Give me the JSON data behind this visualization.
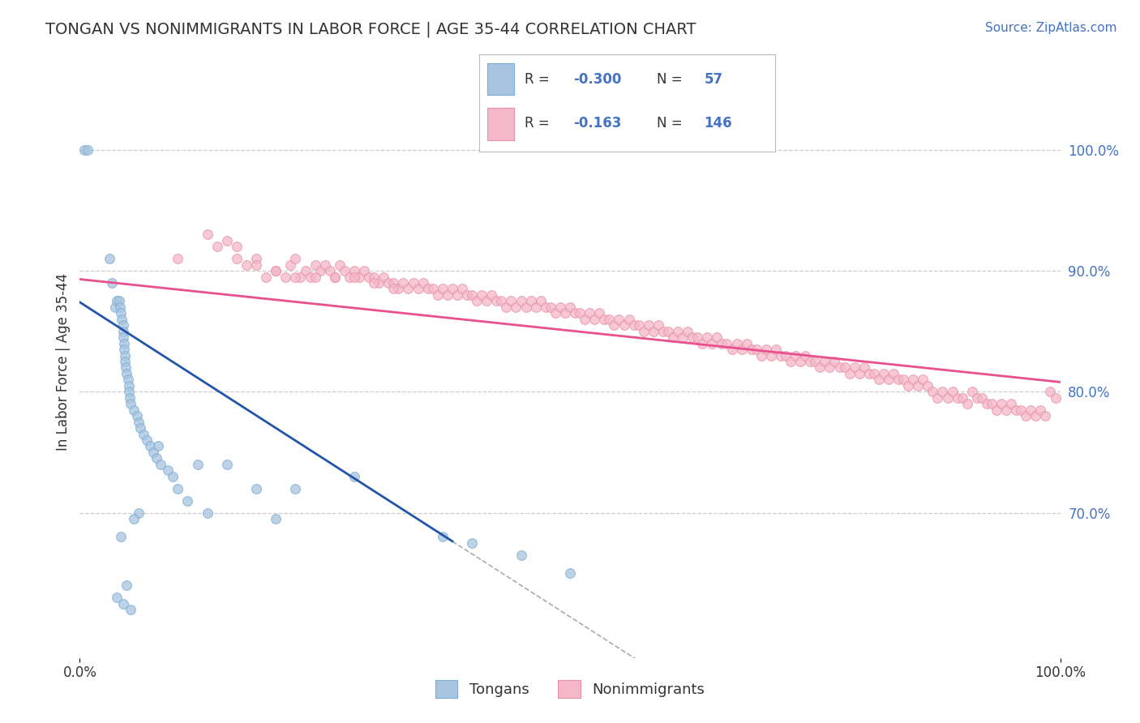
{
  "title": "TONGAN VS NONIMMIGRANTS IN LABOR FORCE | AGE 35-44 CORRELATION CHART",
  "source_text": "Source: ZipAtlas.com",
  "ylabel": "In Labor Force | Age 35-44",
  "xlim": [
    0.0,
    1.0
  ],
  "ylim": [
    0.58,
    1.07
  ],
  "yticklabels_right": [
    "100.0%",
    "90.0%",
    "80.0%",
    "70.0%"
  ],
  "yticklabels_right_vals": [
    1.0,
    0.9,
    0.8,
    0.7
  ],
  "grid_color": "#cccccc",
  "background_color": "#ffffff",
  "title_color": "#333333",
  "title_fontsize": 14,
  "source_color": "#4472c4",
  "source_fontsize": 11,
  "tongan_color": "#a8c4e0",
  "nonimmigrant_color": "#f4b8c8",
  "tongan_edge_color": "#7aadd4",
  "nonimmigrant_edge_color": "#e890aa",
  "marker_size": 72,
  "marker_alpha": 0.75,
  "legend_box_color_tongan": "#a8c4e0",
  "legend_box_color_nonimmigrant": "#f4b8c8",
  "legend_box_edge_tongan": "#7aadd4",
  "legend_box_edge_nonimmigrant": "#e890aa",
  "legend_R_color": "#4472c4",
  "legend_N_color": "#4472c4",
  "legend_fontsize": 13,
  "regression_tongan_color": "#2255aa",
  "regression_nonimmigrant_color": "#e85090",
  "regression_linewidth": 2.0,
  "dashed_extension_color": "#aaaaaa",
  "dashed_linewidth": 1.2,
  "legend_label_tongan": "Tongans",
  "legend_label_nonimmigrant": "Nonimmigrants",
  "tongan_x": [
    0.005,
    0.008,
    0.03,
    0.033,
    0.036,
    0.038,
    0.04,
    0.041,
    0.042,
    0.043,
    0.044,
    0.044,
    0.044,
    0.045,
    0.045,
    0.046,
    0.046,
    0.047,
    0.048,
    0.049,
    0.05,
    0.05,
    0.051,
    0.052,
    0.055,
    0.058,
    0.06,
    0.062,
    0.065,
    0.068,
    0.072,
    0.075,
    0.078,
    0.082,
    0.09,
    0.095,
    0.1,
    0.11,
    0.13,
    0.2,
    0.22,
    0.28,
    0.37,
    0.4,
    0.45,
    0.5,
    0.15,
    0.18,
    0.08,
    0.12,
    0.06,
    0.055,
    0.042,
    0.048,
    0.052,
    0.038,
    0.044
  ],
  "tongan_y": [
    1.0,
    1.0,
    0.91,
    0.89,
    0.87,
    0.875,
    0.875,
    0.87,
    0.865,
    0.86,
    0.855,
    0.85,
    0.845,
    0.84,
    0.835,
    0.83,
    0.825,
    0.82,
    0.815,
    0.81,
    0.805,
    0.8,
    0.795,
    0.79,
    0.785,
    0.78,
    0.775,
    0.77,
    0.765,
    0.76,
    0.755,
    0.75,
    0.745,
    0.74,
    0.735,
    0.73,
    0.72,
    0.71,
    0.7,
    0.695,
    0.72,
    0.73,
    0.68,
    0.675,
    0.665,
    0.65,
    0.74,
    0.72,
    0.755,
    0.74,
    0.7,
    0.695,
    0.68,
    0.64,
    0.62,
    0.63,
    0.625
  ],
  "nonimmigrant_x": [
    0.1,
    0.13,
    0.15,
    0.16,
    0.17,
    0.18,
    0.19,
    0.2,
    0.21,
    0.215,
    0.22,
    0.225,
    0.23,
    0.235,
    0.24,
    0.245,
    0.25,
    0.255,
    0.26,
    0.265,
    0.27,
    0.275,
    0.28,
    0.285,
    0.29,
    0.295,
    0.3,
    0.305,
    0.31,
    0.315,
    0.32,
    0.325,
    0.33,
    0.335,
    0.34,
    0.345,
    0.35,
    0.355,
    0.36,
    0.365,
    0.37,
    0.375,
    0.38,
    0.385,
    0.39,
    0.395,
    0.4,
    0.405,
    0.41,
    0.415,
    0.42,
    0.425,
    0.43,
    0.435,
    0.44,
    0.445,
    0.45,
    0.455,
    0.46,
    0.465,
    0.47,
    0.475,
    0.48,
    0.485,
    0.49,
    0.495,
    0.5,
    0.505,
    0.51,
    0.515,
    0.52,
    0.525,
    0.53,
    0.535,
    0.54,
    0.545,
    0.55,
    0.555,
    0.56,
    0.565,
    0.57,
    0.575,
    0.58,
    0.585,
    0.59,
    0.595,
    0.6,
    0.605,
    0.61,
    0.615,
    0.62,
    0.625,
    0.63,
    0.635,
    0.64,
    0.645,
    0.65,
    0.655,
    0.66,
    0.665,
    0.67,
    0.675,
    0.68,
    0.685,
    0.69,
    0.695,
    0.7,
    0.705,
    0.71,
    0.715,
    0.72,
    0.725,
    0.73,
    0.735,
    0.74,
    0.745,
    0.75,
    0.755,
    0.76,
    0.765,
    0.77,
    0.775,
    0.78,
    0.785,
    0.79,
    0.795,
    0.8,
    0.805,
    0.81,
    0.815,
    0.82,
    0.825,
    0.83,
    0.835,
    0.84,
    0.845,
    0.85,
    0.855,
    0.86,
    0.865,
    0.87,
    0.875,
    0.88,
    0.885,
    0.89,
    0.895,
    0.9,
    0.905,
    0.91,
    0.915,
    0.92,
    0.925,
    0.93,
    0.935,
    0.94,
    0.945,
    0.95,
    0.955,
    0.96,
    0.965,
    0.97,
    0.975,
    0.98,
    0.985,
    0.99,
    0.995,
    0.14,
    0.16,
    0.18,
    0.2,
    0.22,
    0.24,
    0.26,
    0.28,
    0.3,
    0.32
  ],
  "nonimmigrant_y": [
    0.91,
    0.93,
    0.925,
    0.92,
    0.905,
    0.91,
    0.895,
    0.9,
    0.895,
    0.905,
    0.91,
    0.895,
    0.9,
    0.895,
    0.905,
    0.9,
    0.905,
    0.9,
    0.895,
    0.905,
    0.9,
    0.895,
    0.9,
    0.895,
    0.9,
    0.895,
    0.895,
    0.89,
    0.895,
    0.89,
    0.89,
    0.885,
    0.89,
    0.885,
    0.89,
    0.885,
    0.89,
    0.885,
    0.885,
    0.88,
    0.885,
    0.88,
    0.885,
    0.88,
    0.885,
    0.88,
    0.88,
    0.875,
    0.88,
    0.875,
    0.88,
    0.875,
    0.875,
    0.87,
    0.875,
    0.87,
    0.875,
    0.87,
    0.875,
    0.87,
    0.875,
    0.87,
    0.87,
    0.865,
    0.87,
    0.865,
    0.87,
    0.865,
    0.865,
    0.86,
    0.865,
    0.86,
    0.865,
    0.86,
    0.86,
    0.855,
    0.86,
    0.855,
    0.86,
    0.855,
    0.855,
    0.85,
    0.855,
    0.85,
    0.855,
    0.85,
    0.85,
    0.845,
    0.85,
    0.845,
    0.85,
    0.845,
    0.845,
    0.84,
    0.845,
    0.84,
    0.845,
    0.84,
    0.84,
    0.835,
    0.84,
    0.835,
    0.84,
    0.835,
    0.835,
    0.83,
    0.835,
    0.83,
    0.835,
    0.83,
    0.83,
    0.825,
    0.83,
    0.825,
    0.83,
    0.825,
    0.825,
    0.82,
    0.825,
    0.82,
    0.825,
    0.82,
    0.82,
    0.815,
    0.82,
    0.815,
    0.82,
    0.815,
    0.815,
    0.81,
    0.815,
    0.81,
    0.815,
    0.81,
    0.81,
    0.805,
    0.81,
    0.805,
    0.81,
    0.805,
    0.8,
    0.795,
    0.8,
    0.795,
    0.8,
    0.795,
    0.795,
    0.79,
    0.8,
    0.795,
    0.795,
    0.79,
    0.79,
    0.785,
    0.79,
    0.785,
    0.79,
    0.785,
    0.785,
    0.78,
    0.785,
    0.78,
    0.785,
    0.78,
    0.8,
    0.795,
    0.92,
    0.91,
    0.905,
    0.9,
    0.895,
    0.895,
    0.895,
    0.895,
    0.89,
    0.885
  ]
}
